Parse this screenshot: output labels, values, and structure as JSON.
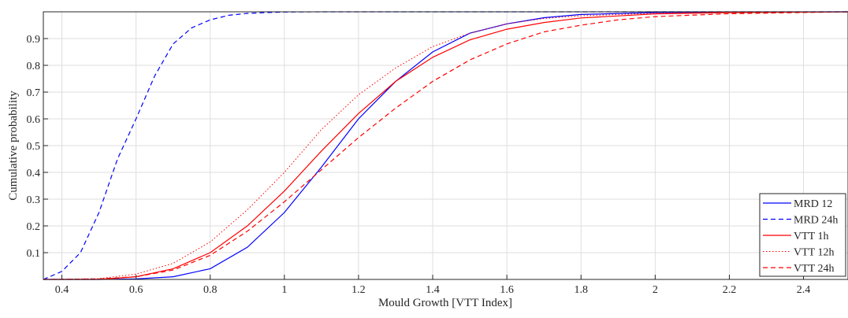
{
  "chart_data": {
    "type": "line",
    "title": "",
    "xlabel": "Mould Growth [VTT Index]",
    "ylabel": "Cumulative probability",
    "xlim": [
      0.35,
      2.52
    ],
    "ylim": [
      0,
      1
    ],
    "xticks": [
      0.4,
      0.6,
      0.8,
      1,
      1.2,
      1.4,
      1.6,
      1.8,
      2,
      2.2,
      2.4
    ],
    "xtick_labels": [
      "0.4",
      "0.6",
      "0.8",
      "1",
      "1.2",
      "1.4",
      "1.6",
      "1.8",
      "2",
      "2.2",
      "2.4"
    ],
    "yticks": [
      0.1,
      0.2,
      0.3,
      0.4,
      0.5,
      0.6,
      0.7,
      0.8,
      0.9
    ],
    "ytick_labels": [
      "0.1",
      "0.2",
      "0.3",
      "0.4",
      "0.5",
      "0.6",
      "0.7",
      "0.8",
      "0.9"
    ],
    "grid": true,
    "legend_position": "bottom-right",
    "series": [
      {
        "name": "MRD 12",
        "color": "#0000ff",
        "dash": "solid",
        "x": [
          0.35,
          0.5,
          0.6,
          0.7,
          0.8,
          0.9,
          1.0,
          1.1,
          1.2,
          1.3,
          1.4,
          1.5,
          1.6,
          1.7,
          1.8,
          2.0,
          2.2,
          2.52
        ],
        "y": [
          0.0,
          0.0,
          0.002,
          0.01,
          0.04,
          0.12,
          0.25,
          0.42,
          0.6,
          0.74,
          0.85,
          0.92,
          0.955,
          0.978,
          0.99,
          0.997,
          0.999,
          1.0
        ]
      },
      {
        "name": "MRD 24h",
        "color": "#0000ff",
        "dash": "dashed",
        "x": [
          0.35,
          0.4,
          0.45,
          0.5,
          0.55,
          0.6,
          0.65,
          0.7,
          0.75,
          0.8,
          0.85,
          0.9,
          0.95,
          1.0,
          1.1,
          1.3,
          2.52
        ],
        "y": [
          0.0,
          0.03,
          0.1,
          0.25,
          0.45,
          0.6,
          0.76,
          0.88,
          0.94,
          0.97,
          0.987,
          0.994,
          0.997,
          0.999,
          1.0,
          1.0,
          1.0
        ]
      },
      {
        "name": "VTT 1h",
        "color": "#ff0000",
        "dash": "solid",
        "x": [
          0.35,
          0.5,
          0.6,
          0.7,
          0.8,
          0.9,
          1.0,
          1.1,
          1.2,
          1.3,
          1.4,
          1.5,
          1.6,
          1.7,
          1.8,
          2.0,
          2.2,
          2.52
        ],
        "y": [
          0.0,
          0.0,
          0.01,
          0.04,
          0.1,
          0.2,
          0.33,
          0.48,
          0.62,
          0.74,
          0.83,
          0.895,
          0.935,
          0.96,
          0.977,
          0.992,
          0.997,
          1.0
        ]
      },
      {
        "name": "VTT 12h",
        "color": "#ff0000",
        "dash": "dotted",
        "x": [
          0.35,
          0.5,
          0.6,
          0.7,
          0.8,
          0.9,
          1.0,
          1.1,
          1.2,
          1.3,
          1.4,
          1.5,
          1.6,
          1.7,
          1.8,
          2.0,
          2.2,
          2.52
        ],
        "y": [
          0.0,
          0.003,
          0.02,
          0.06,
          0.14,
          0.26,
          0.4,
          0.56,
          0.69,
          0.79,
          0.87,
          0.92,
          0.955,
          0.975,
          0.985,
          0.995,
          0.998,
          1.0
        ]
      },
      {
        "name": "VTT 24h",
        "color": "#ff0000",
        "dash": "dashed",
        "x": [
          0.35,
          0.5,
          0.6,
          0.7,
          0.8,
          0.9,
          1.0,
          1.1,
          1.2,
          1.3,
          1.4,
          1.5,
          1.6,
          1.7,
          1.8,
          1.9,
          2.0,
          2.2,
          2.52
        ],
        "y": [
          0.0,
          0.002,
          0.01,
          0.035,
          0.09,
          0.18,
          0.29,
          0.41,
          0.53,
          0.64,
          0.74,
          0.82,
          0.88,
          0.925,
          0.95,
          0.97,
          0.982,
          0.993,
          1.0
        ]
      }
    ]
  }
}
